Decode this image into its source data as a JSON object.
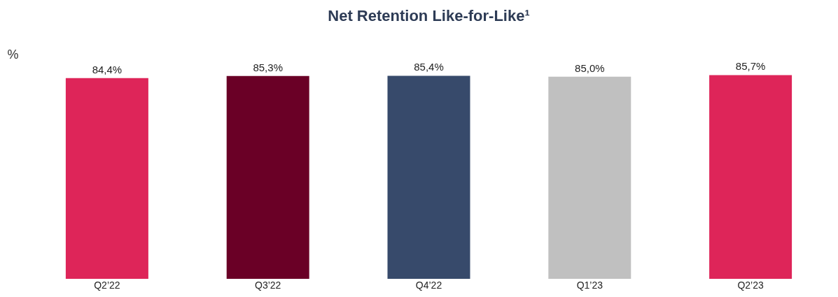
{
  "chart_data": {
    "type": "bar",
    "title": "Net Retention Like-for-Like¹",
    "ylabel": "%",
    "categories": [
      "Q2’22",
      "Q3’22",
      "Q4’22",
      "Q1’23",
      "Q2’23"
    ],
    "values": [
      84.4,
      85.3,
      85.4,
      85.0,
      85.7
    ],
    "value_labels": [
      "84,4%",
      "85,3%",
      "85,4%",
      "85,0%",
      "85,7%"
    ],
    "colors": [
      "#de2559",
      "#6a0026",
      "#374a6b",
      "#c0c0c0",
      "#de2559"
    ],
    "grid": false
  }
}
